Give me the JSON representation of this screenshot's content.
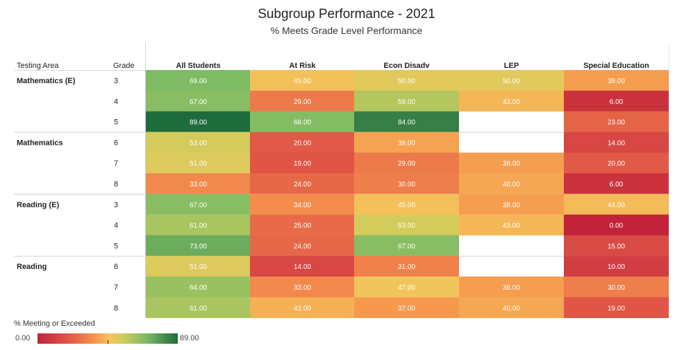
{
  "title": "Subgroup Performance - 2021",
  "subtitle": "% Meets Grade Level Performance",
  "chart_data": {
    "type": "heatmap",
    "title": "Subgroup Performance - 2021",
    "subtitle": "% Meets Grade Level Performance",
    "row_headers": [
      "Testing Area",
      "Grade"
    ],
    "columns": [
      "All Students",
      "At Risk",
      "Econ Disadv",
      "LEP",
      "Special Education"
    ],
    "groups": [
      {
        "area": "Mathematics (E)",
        "rows": [
          {
            "grade": "3",
            "values": [
              "69.00",
              "45.00",
              "50.00",
              "50.00",
              "38.00"
            ]
          },
          {
            "grade": "4",
            "values": [
              "67.00",
              "29.00",
              "59.00",
              "43.00",
              "6.00"
            ]
          },
          {
            "grade": "5",
            "values": [
              "89.00",
              "68.00",
              "84.00",
              null,
              "23.00"
            ]
          }
        ]
      },
      {
        "area": "Mathematics",
        "rows": [
          {
            "grade": "6",
            "values": [
              "53.00",
              "20.00",
              "39.00",
              null,
              "14.00"
            ]
          },
          {
            "grade": "7",
            "values": [
              "51.00",
              "19.00",
              "29.00",
              "38.00",
              "20.00"
            ]
          },
          {
            "grade": "8",
            "values": [
              "33.00",
              "24.00",
              "30.00",
              "40.00",
              "6.00"
            ]
          }
        ]
      },
      {
        "area": "Reading (E)",
        "rows": [
          {
            "grade": "3",
            "values": [
              "67.00",
              "34.00",
              "45.00",
              "38.00",
              "44.00"
            ]
          },
          {
            "grade": "4",
            "values": [
              "61.00",
              "25.00",
              "53.00",
              "43.00",
              "0.00"
            ]
          },
          {
            "grade": "5",
            "values": [
              "73.00",
              "24.00",
              "67.00",
              null,
              "15.00"
            ]
          }
        ]
      },
      {
        "area": "Reading",
        "rows": [
          {
            "grade": "6",
            "values": [
              "51.00",
              "14.00",
              "31.00",
              null,
              "10.00"
            ]
          },
          {
            "grade": "7",
            "values": [
              "64.00",
              "33.00",
              "47.00",
              "38.00",
              "30.00"
            ]
          },
          {
            "grade": "8",
            "values": [
              "61.00",
              "42.00",
              "37.00",
              "40.00",
              "19.00"
            ]
          }
        ]
      }
    ],
    "color_scale": {
      "min": 0,
      "max": 89,
      "min_label": "0.00",
      "max_label": "89.00",
      "title": "% Meeting or Exceeded",
      "stops": [
        "#c0233a",
        "#de5146",
        "#f6924d",
        "#f4c65c",
        "#c8cc5c",
        "#7cba64",
        "#1e6b3c"
      ]
    }
  }
}
